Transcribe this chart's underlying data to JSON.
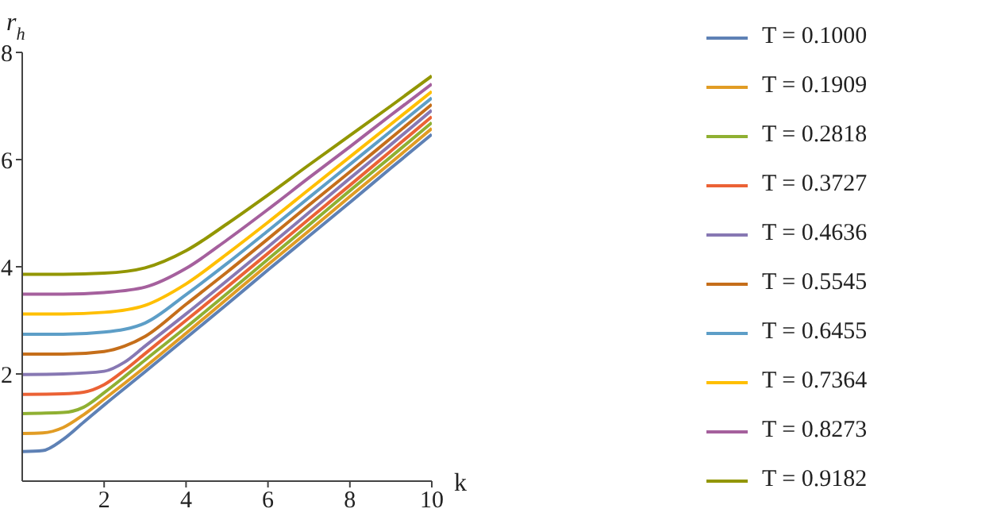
{
  "chart_data": {
    "type": "line",
    "xlabel": "k",
    "ylabel": "r$_{h}$",
    "xlim": [
      0,
      10
    ],
    "ylim": [
      0,
      8
    ],
    "xticks": [
      2,
      4,
      6,
      8,
      10
    ],
    "yticks": [
      2,
      4,
      6,
      8
    ],
    "grid": false,
    "legend": "right",
    "marker": "none",
    "line_style": "solid",
    "series": [
      {
        "name": "T = 0.1000",
        "color": "#5e81b5",
        "x": [
          0,
          0.5,
          1,
          1.5,
          2,
          3,
          4,
          5,
          6,
          7,
          8,
          9,
          10
        ],
        "values": [
          0.55,
          0.57,
          0.78,
          1.1,
          1.42,
          2.04,
          2.67,
          3.3,
          3.94,
          4.57,
          5.2,
          5.84,
          6.47
        ]
      },
      {
        "name": "T = 0.1909",
        "color": "#e19c24",
        "x": [
          0,
          0.5,
          1,
          1.5,
          2,
          3,
          4,
          5,
          6,
          7,
          8,
          9,
          10
        ],
        "values": [
          0.89,
          0.9,
          1.0,
          1.24,
          1.53,
          2.13,
          2.76,
          3.4,
          4.04,
          4.67,
          5.31,
          5.94,
          6.58
        ]
      },
      {
        "name": "T = 0.2818",
        "color": "#8fb032",
        "x": [
          0,
          1,
          1.5,
          2,
          2.5,
          3,
          4,
          5,
          6,
          7,
          8,
          9,
          10
        ],
        "values": [
          1.26,
          1.28,
          1.38,
          1.65,
          1.95,
          2.26,
          2.87,
          3.5,
          4.14,
          4.78,
          5.42,
          6.05,
          6.69
        ]
      },
      {
        "name": "T = 0.3727",
        "color": "#eb6235",
        "x": [
          0,
          1,
          1.5,
          2,
          2.5,
          3,
          4,
          5,
          6,
          7,
          8,
          9,
          10
        ],
        "values": [
          1.62,
          1.63,
          1.66,
          1.8,
          2.07,
          2.38,
          3.0,
          3.62,
          4.25,
          4.89,
          5.52,
          6.16,
          6.8
        ]
      },
      {
        "name": "T = 0.4636",
        "color": "#8778b3",
        "x": [
          0,
          1,
          2,
          2.5,
          3,
          4,
          5,
          6,
          7,
          8,
          9,
          10
        ],
        "values": [
          1.99,
          2.0,
          2.05,
          2.22,
          2.52,
          3.12,
          3.74,
          4.37,
          5.01,
          5.65,
          6.28,
          6.92
        ]
      },
      {
        "name": "T = 0.5545",
        "color": "#c56e1a",
        "x": [
          0,
          1,
          2,
          2.5,
          3,
          4,
          5,
          6,
          7,
          8,
          9,
          10
        ],
        "values": [
          2.37,
          2.37,
          2.42,
          2.52,
          2.7,
          3.3,
          3.9,
          4.52,
          5.15,
          5.77,
          6.4,
          7.03
        ]
      },
      {
        "name": "T = 0.6455",
        "color": "#5d9ec7",
        "x": [
          0,
          1,
          2,
          3,
          4,
          5,
          6,
          7,
          8,
          9,
          10
        ],
        "values": [
          2.74,
          2.74,
          2.78,
          2.95,
          3.48,
          4.06,
          4.67,
          5.29,
          5.91,
          6.53,
          7.15
        ]
      },
      {
        "name": "T = 0.7364",
        "color": "#ffbf00",
        "x": [
          0,
          1,
          2,
          3,
          4,
          5,
          6,
          7,
          8,
          9,
          10
        ],
        "values": [
          3.12,
          3.12,
          3.15,
          3.28,
          3.68,
          4.24,
          4.83,
          5.44,
          6.05,
          6.66,
          7.27
        ]
      },
      {
        "name": "T = 0.8273",
        "color": "#a5609d",
        "x": [
          0,
          1,
          2,
          3,
          4,
          5,
          6,
          7,
          8,
          9,
          10
        ],
        "values": [
          3.49,
          3.49,
          3.52,
          3.62,
          3.97,
          4.5,
          5.07,
          5.66,
          6.24,
          6.83,
          7.41
        ]
      },
      {
        "name": "T = 0.9182",
        "color": "#929600",
        "x": [
          0,
          1,
          2,
          3,
          4,
          5,
          6,
          7,
          8,
          9,
          10
        ],
        "values": [
          3.86,
          3.86,
          3.88,
          3.98,
          4.3,
          4.8,
          5.34,
          5.9,
          6.45,
          7.0,
          7.56
        ]
      }
    ]
  }
}
